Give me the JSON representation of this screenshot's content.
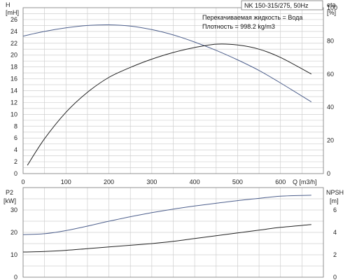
{
  "chart_data": [
    {
      "type": "line",
      "name": "head-efficiency",
      "title": "NK 150-315/275, 50Hz",
      "notes": [
        "Перекачиваемая жидкость = Вода",
        "Плотность = 998.2 kg/m3"
      ],
      "xlabel": "Q [m3/h]",
      "xlim": [
        0,
        700
      ],
      "xticks": [
        0,
        100,
        200,
        300,
        400,
        500,
        600
      ],
      "y_left": {
        "label": "H",
        "unit": "[mH]",
        "lim": [
          0,
          28
        ],
        "ticks": [
          0,
          2,
          4,
          6,
          8,
          10,
          12,
          14,
          16,
          18,
          20,
          22,
          24,
          26
        ]
      },
      "y_right": {
        "label": "eta",
        "unit": "[%]",
        "lim": [
          0,
          100
        ],
        "ticks": [
          0,
          20,
          40,
          60,
          80,
          100
        ]
      },
      "grid": true,
      "series": [
        {
          "axis": "left",
          "color": "#4d5f8c",
          "x": [
            0,
            50,
            100,
            150,
            200,
            250,
            300,
            350,
            400,
            450,
            500,
            550,
            600,
            672
          ],
          "y": [
            23.2,
            24.0,
            24.6,
            25.0,
            25.1,
            24.9,
            24.3,
            23.4,
            22.2,
            20.8,
            19.2,
            17.4,
            15.3,
            12.1
          ]
        },
        {
          "axis": "right",
          "color": "#222222",
          "x": [
            10,
            50,
            100,
            150,
            200,
            250,
            300,
            350,
            400,
            450,
            500,
            550,
            600,
            672
          ],
          "y": [
            5,
            21,
            37,
            49,
            58,
            64,
            69,
            73,
            76,
            78,
            77.5,
            75,
            70,
            60
          ]
        }
      ]
    },
    {
      "type": "line",
      "name": "power-npsh",
      "xlim": [
        0,
        700
      ],
      "y_left": {
        "label": "P2",
        "unit": "[kW]",
        "lim": [
          0,
          40
        ],
        "ticks": [
          0,
          10,
          20,
          30
        ]
      },
      "y_right": {
        "label": "NPSH",
        "unit": "[m]",
        "lim": [
          0,
          8
        ],
        "ticks": [
          0,
          2,
          4,
          6
        ]
      },
      "grid": true,
      "series": [
        {
          "axis": "left",
          "color": "#4d5f8c",
          "x": [
            0,
            50,
            100,
            150,
            200,
            250,
            300,
            350,
            400,
            450,
            500,
            550,
            600,
            672
          ],
          "y": [
            19.0,
            19.4,
            20.8,
            22.8,
            25.0,
            27.0,
            28.8,
            30.4,
            31.8,
            33.0,
            34.2,
            35.2,
            36.2,
            36.6
          ]
        },
        {
          "axis": "right",
          "color": "#222222",
          "x": [
            0,
            50,
            100,
            150,
            200,
            250,
            300,
            350,
            400,
            450,
            500,
            550,
            600,
            672
          ],
          "y": [
            2.25,
            2.3,
            2.4,
            2.55,
            2.7,
            2.85,
            3.0,
            3.2,
            3.45,
            3.7,
            3.95,
            4.2,
            4.45,
            4.7
          ]
        }
      ]
    }
  ]
}
